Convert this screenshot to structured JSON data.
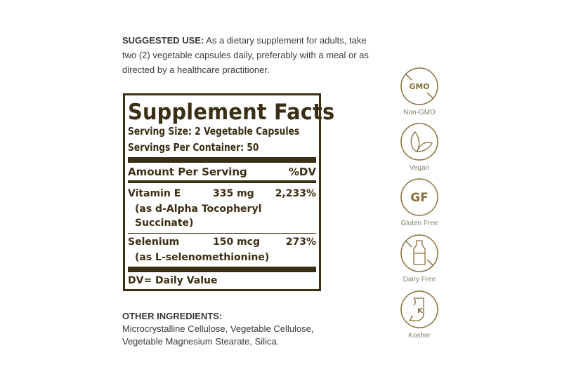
{
  "suggested_use": {
    "heading": "SUGGESTED USE:",
    "text": "As a dietary supplement for adults, take two (2) vegetable capsules daily, preferably with a meal or as directed by a healthcare practitioner."
  },
  "facts": {
    "title": "Supplement Facts",
    "serving_size": "Serving Size: 2 Vegetable Capsules",
    "servings_per_container": "Servings Per Container: 50",
    "header_amount": "Amount Per Serving",
    "header_dv": "%DV",
    "nutrients": [
      {
        "name": "Vitamin E",
        "amount": "335 mg",
        "dv": "2,233%",
        "source_line1": "(as d-Alpha Tocopheryl",
        "source_line2": "Succinate)"
      },
      {
        "name": "Selenium",
        "amount": "150 mcg",
        "dv": "273%",
        "source_line1": "(as L-selenomethionine)"
      }
    ],
    "footnote": "DV= Daily Value"
  },
  "other_ingredients": {
    "heading": "OTHER INGREDIENTS:",
    "line1": "Microcrystalline Cellulose, Vegetable Cellulose,",
    "line2": "Vegetable Magnesium Stearate, Silica."
  },
  "badges": [
    {
      "icon": "gmo-crossed-icon",
      "icon_text": "GMO",
      "label": "Non-GMO"
    },
    {
      "icon": "leaf-icon",
      "label": "Vegan"
    },
    {
      "icon": "gf-icon",
      "icon_text": "GF",
      "label": "Gluten Free"
    },
    {
      "icon": "milk-bottle-crossed-icon",
      "label": "Dairy Free"
    },
    {
      "icon": "kosher-icon",
      "icon_text": "K",
      "label": "Kosher"
    }
  ],
  "colors": {
    "label_brown": "#3a2f14",
    "badge_gold": "#8a6f3e"
  }
}
